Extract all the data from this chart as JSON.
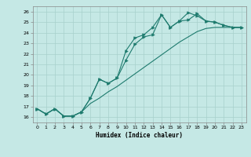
{
  "xlabel": "Humidex (Indice chaleur)",
  "bg_color": "#c5e8e5",
  "grid_color": "#a8d0cc",
  "line_color": "#1e7b6e",
  "xlim": [
    -0.5,
    23.5
  ],
  "ylim": [
    15.5,
    26.5
  ],
  "xticks": [
    0,
    1,
    2,
    3,
    4,
    5,
    6,
    7,
    8,
    9,
    10,
    11,
    12,
    13,
    14,
    15,
    16,
    17,
    18,
    19,
    20,
    21,
    22,
    23
  ],
  "yticks": [
    16,
    17,
    18,
    19,
    20,
    21,
    22,
    23,
    24,
    25,
    26
  ],
  "line1_x": [
    0,
    1,
    2,
    3,
    4,
    5,
    6,
    7,
    8,
    9,
    10,
    11,
    12,
    13,
    14,
    15,
    16,
    17,
    18,
    19,
    20,
    21,
    22,
    23
  ],
  "line1_y": [
    16.8,
    16.3,
    16.8,
    16.1,
    16.1,
    16.5,
    17.8,
    19.6,
    19.2,
    19.7,
    21.4,
    22.9,
    23.6,
    23.8,
    25.7,
    24.5,
    25.1,
    25.2,
    25.8,
    25.1,
    25.0,
    24.7,
    24.5,
    24.5
  ],
  "line2_x": [
    0,
    1,
    2,
    3,
    4,
    5,
    6,
    7,
    8,
    9,
    10,
    11,
    12,
    13,
    14,
    15,
    16,
    17,
    18,
    19,
    20,
    21,
    22,
    23
  ],
  "line2_y": [
    16.8,
    16.3,
    16.8,
    16.1,
    16.1,
    16.5,
    17.8,
    19.6,
    19.2,
    19.7,
    22.3,
    23.5,
    23.8,
    24.5,
    25.7,
    24.5,
    25.1,
    25.9,
    25.6,
    25.1,
    25.0,
    24.7,
    24.5,
    24.5
  ],
  "line3_x": [
    0,
    1,
    2,
    3,
    4,
    5,
    6,
    7,
    8,
    9,
    10,
    11,
    12,
    13,
    14,
    15,
    16,
    17,
    18,
    19,
    20,
    21,
    22,
    23
  ],
  "line3_y": [
    16.8,
    16.3,
    16.8,
    16.1,
    16.1,
    16.5,
    17.3,
    17.8,
    18.4,
    18.9,
    19.5,
    20.1,
    20.7,
    21.3,
    21.9,
    22.5,
    23.1,
    23.6,
    24.1,
    24.4,
    24.5,
    24.5,
    24.5,
    24.5
  ]
}
